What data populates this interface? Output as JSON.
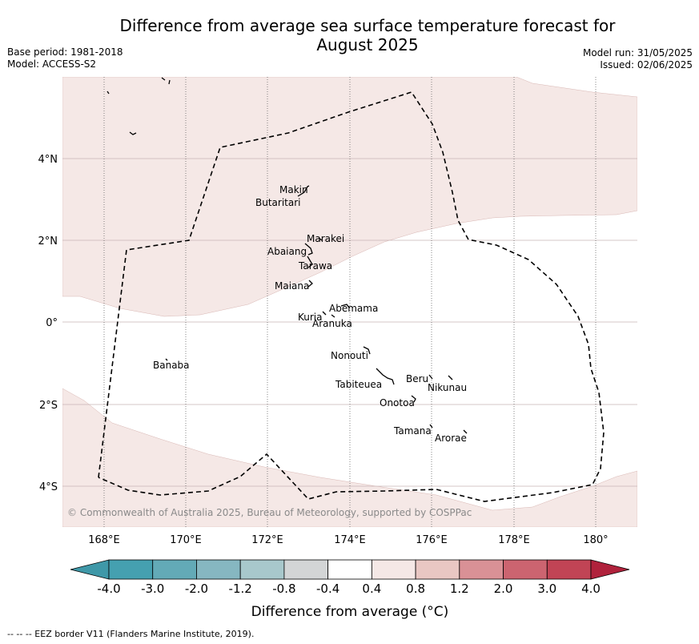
{
  "title_line1": "Difference from average sea surface temperature forecast for",
  "title_line2": "August 2025",
  "base_period": "Base period: 1981-2018",
  "model": "Model: ACCESS-S2",
  "model_run": "Model run: 31/05/2025",
  "issued": "Issued: 02/06/2025",
  "copyright": "© Commonwealth of Australia 2025, Bureau of Meteorology, supported by COSPPac",
  "footer": "--  --  -- EEZ border V11 (Flanders Marine Institute, 2019).",
  "colorbar_label": "Difference from average (°C)",
  "x_ticks": [
    "168°E",
    "170°E",
    "172°E",
    "174°E",
    "176°E",
    "178°E",
    "180°"
  ],
  "y_ticks": [
    "4°N",
    "2°N",
    "0°",
    "2°S",
    "4°S"
  ],
  "colorbar": {
    "bins": [
      {
        "color": "#3f98a8"
      },
      {
        "color": "#45a0b0"
      },
      {
        "color": "#63aab7"
      },
      {
        "color": "#86b7c1"
      },
      {
        "color": "#a8c8cc"
      },
      {
        "color": "#d3d5d6"
      },
      {
        "color": "#ffffff"
      },
      {
        "color": "#f5e8e6"
      },
      {
        "color": "#e9c7c3"
      },
      {
        "color": "#d99196"
      },
      {
        "color": "#cc6470"
      },
      {
        "color": "#c14455"
      },
      {
        "color": "#b0223c"
      }
    ],
    "tick_labels": [
      "-4.0",
      "-3.0",
      "-2.0",
      "-1.2",
      "-0.8",
      "-0.4",
      "0.4",
      "0.8",
      "1.2",
      "2.0",
      "3.0",
      "4.0"
    ]
  },
  "islands": [
    {
      "name": "Makin"
    },
    {
      "name": "Butaritari"
    },
    {
      "name": "Marakei"
    },
    {
      "name": "Abaiang"
    },
    {
      "name": "Tarawa"
    },
    {
      "name": "Maiana"
    },
    {
      "name": "Abemama"
    },
    {
      "name": "Kuria"
    },
    {
      "name": "Aranuka"
    },
    {
      "name": "Banaba"
    },
    {
      "name": "Nonouti"
    },
    {
      "name": "Tabiteuea"
    },
    {
      "name": "Beru"
    },
    {
      "name": "Nikunau"
    },
    {
      "name": "Onotoa"
    },
    {
      "name": "Tamana"
    },
    {
      "name": "Arorae"
    }
  ],
  "colors": {
    "anomaly_fill": "#f5e8e6",
    "gridline": "#c9b5b5"
  }
}
